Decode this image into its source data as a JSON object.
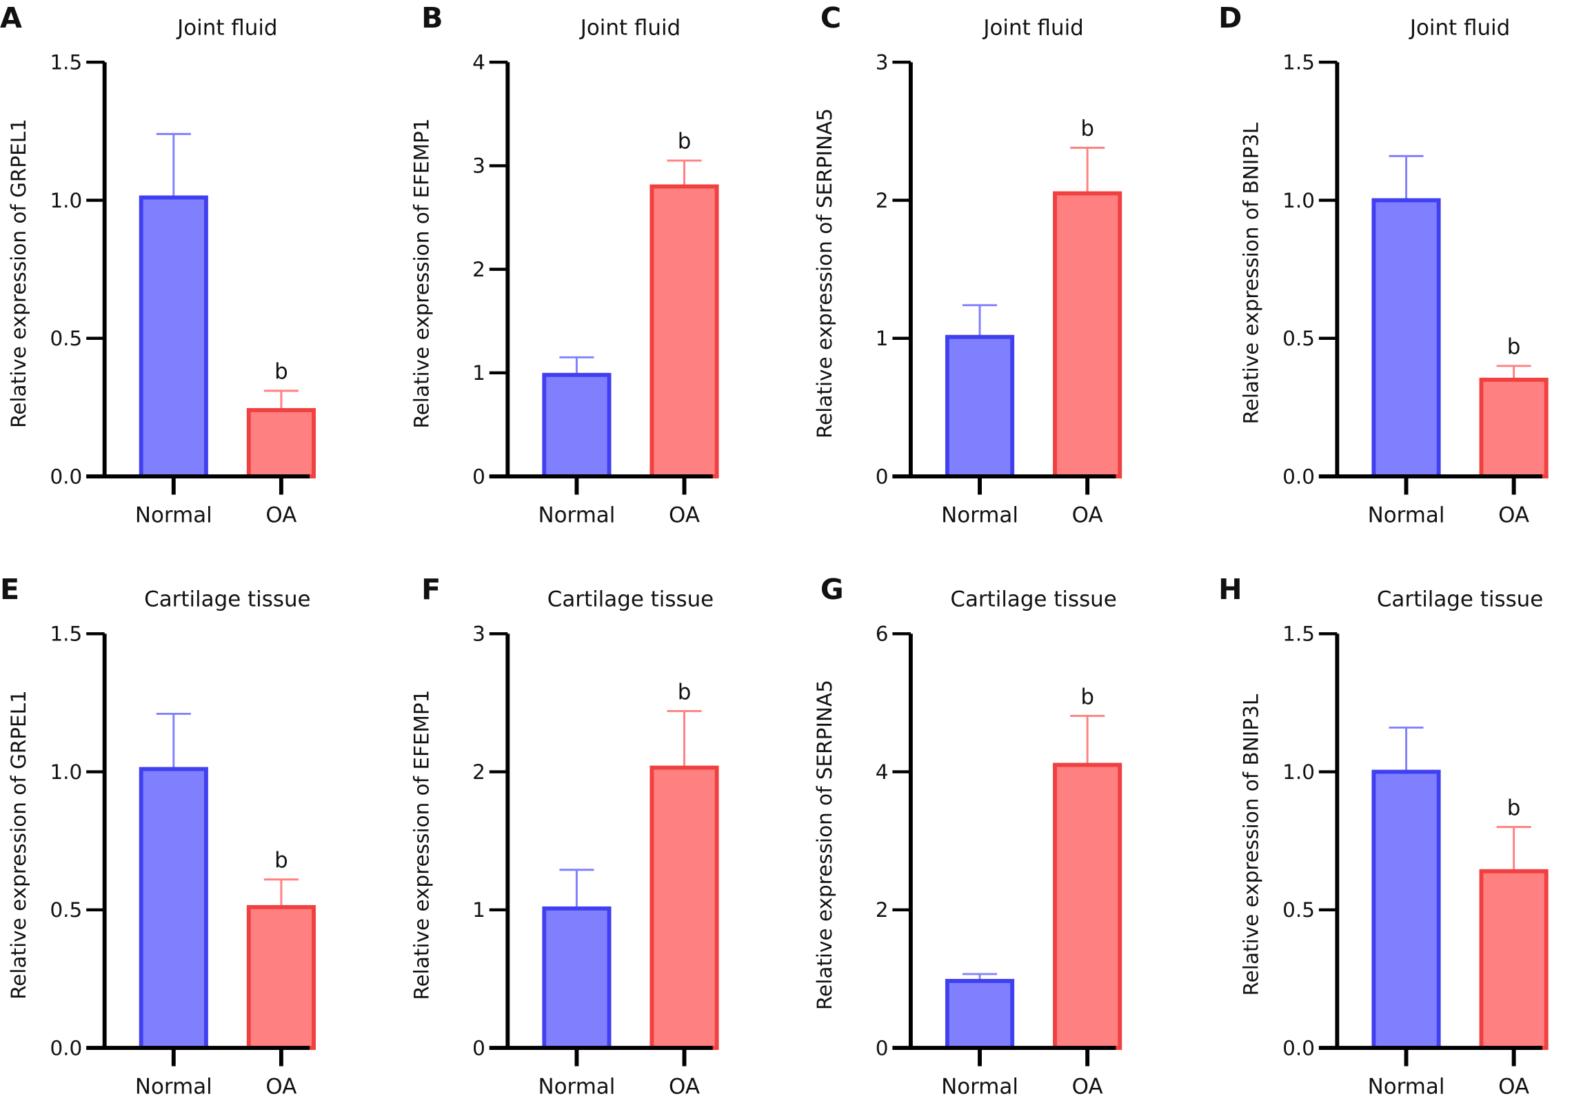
{
  "colors": {
    "normal_fill": "#8080ff",
    "normal_stroke": "#4040f0",
    "oa_fill": "#ff8080",
    "oa_stroke": "#f04040",
    "axis": "#000000"
  },
  "chart_data": [
    {
      "panel": "A",
      "type": "bar",
      "title": "Joint fluid",
      "ylabel": "Relative expression of GRPEL1",
      "categories": [
        "Normal",
        "OA"
      ],
      "values": [
        1.01,
        0.24
      ],
      "errors_upper": [
        1.24,
        0.31
      ],
      "ylim": [
        0,
        1.5
      ],
      "yticks": [
        "0.0",
        "0.5",
        "1.0",
        "1.5"
      ],
      "significance": [
        "",
        "b"
      ],
      "grid": false
    },
    {
      "panel": "B",
      "type": "bar",
      "title": "Joint fluid",
      "ylabel": "Relative expression of EFEMP1",
      "categories": [
        "Normal",
        "OA"
      ],
      "values": [
        0.98,
        2.8
      ],
      "errors_upper": [
        1.15,
        3.05
      ],
      "ylim": [
        0,
        4
      ],
      "yticks": [
        "0",
        "1",
        "2",
        "3",
        "4"
      ],
      "significance": [
        "",
        "b"
      ],
      "grid": false
    },
    {
      "panel": "C",
      "type": "bar",
      "title": "Joint fluid",
      "ylabel": "Relative expression of SERPINA5",
      "categories": [
        "Normal",
        "OA"
      ],
      "values": [
        1.01,
        2.05
      ],
      "errors_upper": [
        1.24,
        2.38
      ],
      "ylim": [
        0,
        3
      ],
      "yticks": [
        "0",
        "1",
        "2",
        "3"
      ],
      "significance": [
        "",
        "b"
      ],
      "grid": false
    },
    {
      "panel": "D",
      "type": "bar",
      "title": "Joint fluid",
      "ylabel": "Relative expression of BNIP3L",
      "categories": [
        "Normal",
        "OA"
      ],
      "values": [
        1.0,
        0.35
      ],
      "errors_upper": [
        1.16,
        0.4
      ],
      "ylim": [
        0,
        1.5
      ],
      "yticks": [
        "0.0",
        "0.5",
        "1.0",
        "1.5"
      ],
      "significance": [
        "",
        "b"
      ],
      "grid": false
    },
    {
      "panel": "E",
      "type": "bar",
      "title": "Cartilage tissue",
      "ylabel": "Relative expression of GRPEL1",
      "categories": [
        "Normal",
        "OA"
      ],
      "values": [
        1.01,
        0.51
      ],
      "errors_upper": [
        1.21,
        0.61
      ],
      "ylim": [
        0,
        1.5
      ],
      "yticks": [
        "0.0",
        "0.5",
        "1.0",
        "1.5"
      ],
      "significance": [
        "",
        "b"
      ],
      "grid": false
    },
    {
      "panel": "F",
      "type": "bar",
      "title": "Cartilage tissue",
      "ylabel": "Relative expression of EFEMP1",
      "categories": [
        "Normal",
        "OA"
      ],
      "values": [
        1.01,
        2.03
      ],
      "errors_upper": [
        1.29,
        2.44
      ],
      "ylim": [
        0,
        3
      ],
      "yticks": [
        "0",
        "1",
        "2",
        "3"
      ],
      "significance": [
        "",
        "b"
      ],
      "grid": false
    },
    {
      "panel": "G",
      "type": "bar",
      "title": "Cartilage tissue",
      "ylabel": "Relative expression of SERPINA5",
      "categories": [
        "Normal",
        "OA"
      ],
      "values": [
        0.97,
        4.1
      ],
      "errors_upper": [
        1.07,
        4.81
      ],
      "ylim": [
        0,
        6
      ],
      "yticks": [
        "0",
        "2",
        "4",
        "6"
      ],
      "significance": [
        "",
        "b"
      ],
      "grid": false
    },
    {
      "panel": "H",
      "type": "bar",
      "title": "Cartilage tissue",
      "ylabel": "Relative expression of BNIP3L",
      "categories": [
        "Normal",
        "OA"
      ],
      "values": [
        1.0,
        0.64
      ],
      "errors_upper": [
        1.16,
        0.8
      ],
      "ylim": [
        0,
        1.5
      ],
      "yticks": [
        "0.0",
        "0.5",
        "1.0",
        "1.5"
      ],
      "significance": [
        "",
        "b"
      ],
      "grid": false
    }
  ]
}
